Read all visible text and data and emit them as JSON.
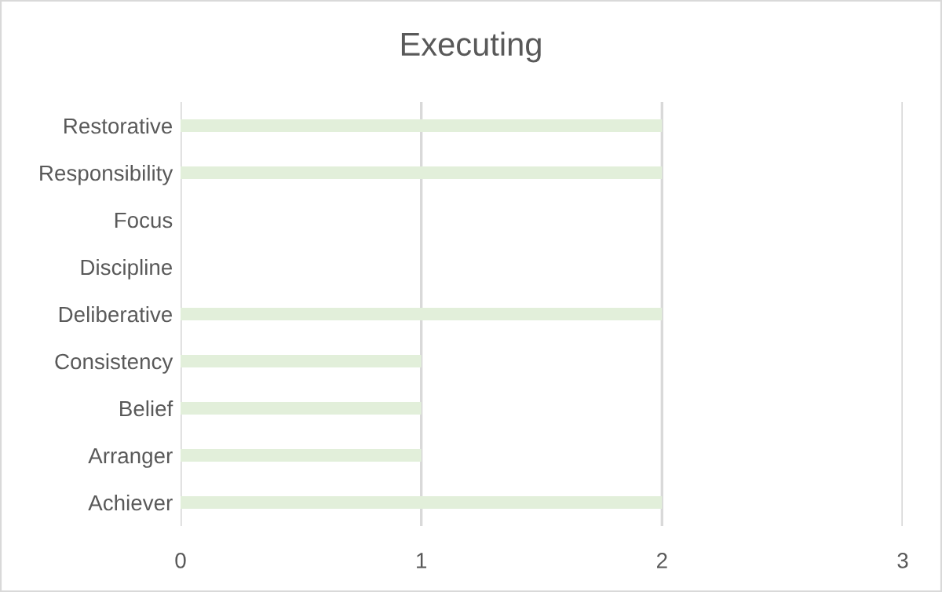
{
  "chart_data": {
    "type": "bar",
    "orientation": "horizontal",
    "title": "Executing",
    "categories": [
      "Restorative",
      "Responsibility",
      "Focus",
      "Discipline",
      "Deliberative",
      "Consistency",
      "Belief",
      "Arranger",
      "Achiever"
    ],
    "values": [
      2,
      2,
      0,
      0,
      2,
      1,
      1,
      1,
      2
    ],
    "color": "#e2efda",
    "xlim": [
      0,
      3
    ],
    "xticks": [
      0,
      1,
      2,
      3
    ],
    "grid": "x",
    "legend": false
  }
}
